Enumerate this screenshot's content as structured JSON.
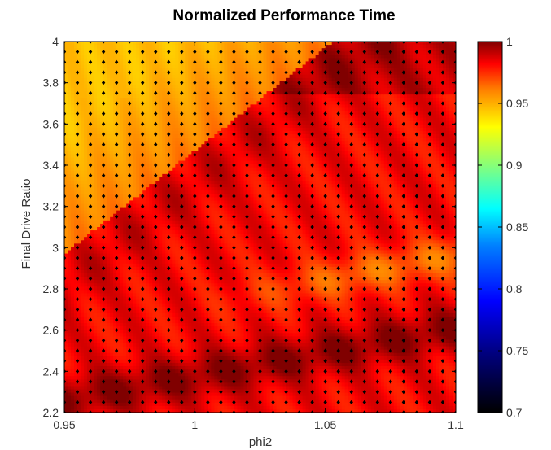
{
  "chart_data": {
    "type": "heatmap",
    "title": "Normalized Performance Time",
    "xlabel": "phi2",
    "ylabel": "Final Drive Ratio",
    "xlim": [
      0.95,
      1.1
    ],
    "ylim": [
      2.2,
      4.0
    ],
    "x_ticks": [
      "0.95",
      "1",
      "1.05",
      "1.1"
    ],
    "y_ticks": [
      "2.2",
      "2.4",
      "2.6",
      "2.8",
      "3",
      "3.2",
      "3.4",
      "3.6",
      "3.8",
      "4"
    ],
    "grid": false,
    "grid_points": {
      "x_start": 0.95,
      "x_step": 0.005,
      "x_count": 31,
      "y_start": 2.2,
      "y_step": 0.05,
      "y_count": 37
    },
    "marker_style": "black diamond at every sample point",
    "colormap": "jet",
    "colorbar": {
      "range": [
        0.7,
        1.0
      ],
      "ticks": [
        "0.7",
        "0.75",
        "0.8",
        "0.85",
        "0.9",
        "0.95",
        "1"
      ],
      "placement": "right"
    },
    "regions": [
      {
        "description": "upper-left corner above diagonal",
        "value_range": [
          0.94,
          0.96
        ]
      },
      {
        "description": "band just below diagonal",
        "value_range": [
          0.985,
          1.0
        ]
      },
      {
        "description": "central area",
        "value_range": [
          0.975,
          0.99
        ]
      },
      {
        "description": "right-center tongue near y=2.9",
        "value_range": [
          0.96,
          0.975
        ]
      },
      {
        "description": "lower band near y=2.3-2.5",
        "value_range": [
          0.99,
          1.0
        ]
      }
    ]
  }
}
